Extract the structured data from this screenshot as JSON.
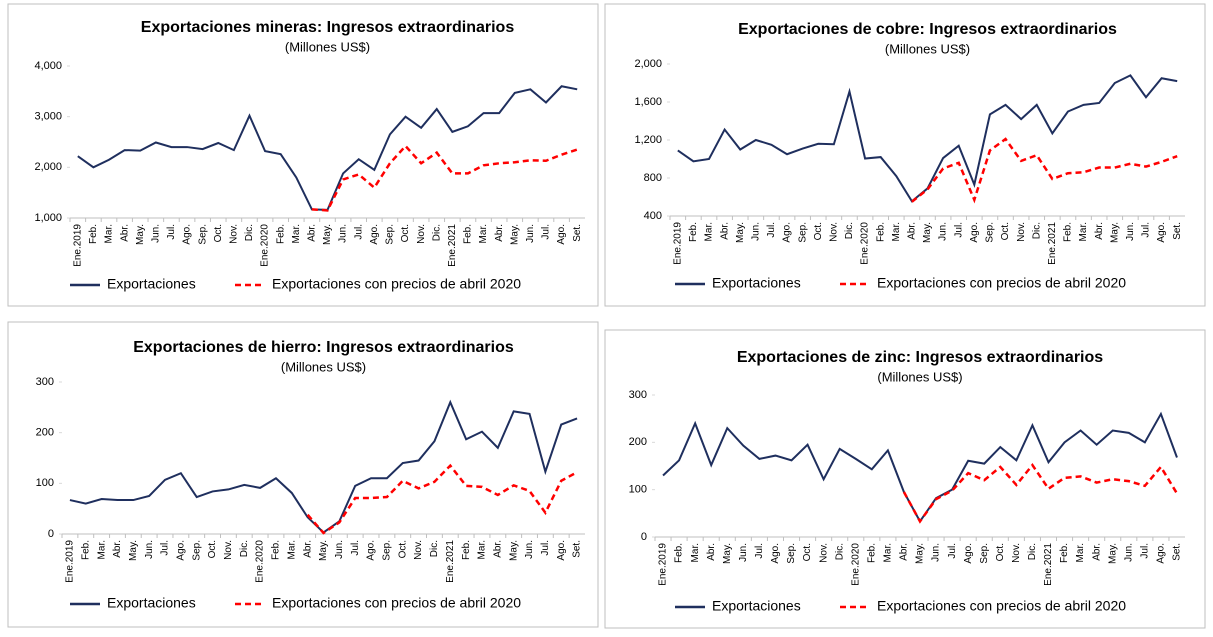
{
  "chart_data": [
    {
      "type": "line",
      "title": "Exportaciones mineras: Ingresos extraordinarios",
      "subtitle": "(Millones US$)",
      "categories": [
        "Ene.2019",
        "Feb.",
        "Mar.",
        "Abr.",
        "May.",
        "Jun.",
        "Jul.",
        "Ago.",
        "Sep.",
        "Oct.",
        "Nov.",
        "Dic.",
        "Ene.2020",
        "Feb.",
        "Mar.",
        "Abr.",
        "May.",
        "Jun.",
        "Jul.",
        "Ago.",
        "Sep.",
        "Oct.",
        "Nov.",
        "Dic.",
        "Ene.2021",
        "Feb.",
        "Mar.",
        "Abr.",
        "May.",
        "Jun.",
        "Jul.",
        "Ago.",
        "Set."
      ],
      "series": [
        {
          "name": "Exportaciones",
          "color": "#1f2f5e",
          "style": "solid",
          "values": [
            2220,
            2000,
            2150,
            2340,
            2330,
            2490,
            2400,
            2400,
            2360,
            2480,
            2340,
            3020,
            2320,
            2260,
            1800,
            1170,
            1160,
            1880,
            2160,
            1950,
            2650,
            3000,
            2780,
            3150,
            2700,
            2810,
            3070,
            3070,
            3470,
            3540,
            3280,
            3600,
            3540
          ]
        },
        {
          "name": "Exportaciones con precios de abril 2020",
          "color": "#ff0000",
          "style": "dashed",
          "values": [
            null,
            null,
            null,
            null,
            null,
            null,
            null,
            null,
            null,
            null,
            null,
            null,
            null,
            null,
            null,
            1170,
            1150,
            1760,
            1860,
            1600,
            2080,
            2420,
            2080,
            2290,
            1880,
            1880,
            2040,
            2080,
            2100,
            2140,
            2130,
            2250,
            2350
          ]
        }
      ],
      "ylim": [
        1000,
        4000
      ],
      "yticks": [
        {
          "value": 1000,
          "label": "1,000"
        },
        {
          "value": 2000,
          "label": "2,000"
        },
        {
          "value": 3000,
          "label": "3,000"
        },
        {
          "value": 4000,
          "label": "4,000"
        }
      ]
    },
    {
      "type": "line",
      "title": "Exportaciones de cobre: Ingresos extraordinarios",
      "subtitle": "(Millones US$)",
      "categories": [
        "Ene.2019",
        "Feb.",
        "Mar.",
        "Abr.",
        "May.",
        "Jun.",
        "Jul.",
        "Ago.",
        "Sep.",
        "Oct.",
        "Nov.",
        "Dic.",
        "Ene.2020",
        "Feb.",
        "Mar.",
        "Abr.",
        "May.",
        "Jun.",
        "Jul.",
        "Ago.",
        "Sep.",
        "Oct.",
        "Nov.",
        "Dic.",
        "Ene.2021",
        "Feb.",
        "Mar.",
        "Abr.",
        "May.",
        "Jun.",
        "Jul.",
        "Ago.",
        "Set."
      ],
      "series": [
        {
          "name": "Exportaciones",
          "color": "#1f2f5e",
          "style": "solid",
          "values": [
            1090,
            975,
            1000,
            1310,
            1100,
            1200,
            1150,
            1050,
            1110,
            1160,
            1155,
            1710,
            1005,
            1020,
            820,
            555,
            690,
            1010,
            1140,
            730,
            1470,
            1570,
            1420,
            1570,
            1270,
            1500,
            1570,
            1590,
            1800,
            1880,
            1650,
            1850,
            1820
          ]
        },
        {
          "name": "Exportaciones con precios de abril 2020",
          "color": "#ff0000",
          "style": "dashed",
          "values": [
            null,
            null,
            null,
            null,
            null,
            null,
            null,
            null,
            null,
            null,
            null,
            null,
            null,
            null,
            null,
            550,
            680,
            900,
            960,
            570,
            1090,
            1210,
            980,
            1040,
            790,
            850,
            860,
            910,
            910,
            950,
            920,
            970,
            1030
          ]
        }
      ],
      "ylim": [
        400,
        2000
      ],
      "yticks": [
        400,
        800,
        {
          "value": 1200,
          "label": "1,200"
        },
        {
          "value": 1600,
          "label": "1,600"
        },
        {
          "value": 2000,
          "label": "2,000"
        }
      ]
    },
    {
      "type": "line",
      "title": "Exportaciones de hierro: Ingresos extraordinarios",
      "subtitle": "(Millones US$)",
      "categories": [
        "Ene.2019",
        "Feb.",
        "Mar.",
        "Abr.",
        "May.",
        "Jun.",
        "Jul.",
        "Ago.",
        "Sep.",
        "Oct.",
        "Nov.",
        "Dic.",
        "Ene.2020",
        "Feb.",
        "Mar.",
        "Abr.",
        "May.",
        "Jun.",
        "Jul.",
        "Ago.",
        "Sep.",
        "Oct.",
        "Nov.",
        "Dic.",
        "Ene.2021",
        "Feb.",
        "Mar.",
        "Abr.",
        "May.",
        "Jun.",
        "Jul.",
        "Ago.",
        "Set."
      ],
      "series": [
        {
          "name": "Exportaciones",
          "color": "#1f2f5e",
          "style": "solid",
          "values": [
            67,
            60,
            69,
            67,
            67,
            75,
            107,
            120,
            73,
            84,
            88,
            97,
            91,
            110,
            81,
            33,
            3,
            25,
            95,
            110,
            110,
            140,
            145,
            183,
            260,
            187,
            202,
            170,
            242,
            237,
            123,
            216,
            228
          ]
        },
        {
          "name": "Exportaciones con precios de abril 2020",
          "color": "#ff0000",
          "style": "dashed",
          "values": [
            null,
            null,
            null,
            null,
            null,
            null,
            null,
            null,
            null,
            null,
            null,
            null,
            null,
            null,
            null,
            38,
            2,
            23,
            71,
            71,
            73,
            105,
            90,
            103,
            135,
            95,
            93,
            77,
            96,
            85,
            42,
            105,
            122
          ]
        }
      ],
      "ylim": [
        0,
        300
      ],
      "yticks": [
        0,
        100,
        200,
        300
      ]
    },
    {
      "type": "line",
      "title": "Exportaciones de zinc: Ingresos extraordinarios",
      "subtitle": "(Millones US$)",
      "categories": [
        "Ene.2019",
        "Feb.",
        "Mar.",
        "Abr.",
        "May.",
        "Jun.",
        "Jul.",
        "Ago.",
        "Sep.",
        "Oct.",
        "Nov.",
        "Dic.",
        "Ene.2020",
        "Feb.",
        "Mar.",
        "Abr.",
        "May.",
        "Jun.",
        "Jul.",
        "Ago.",
        "Sep.",
        "Oct.",
        "Nov.",
        "Dic.",
        "Ene.2021",
        "Feb.",
        "Mar.",
        "Abr.",
        "May.",
        "Jun.",
        "Jul.",
        "Ago.",
        "Set."
      ],
      "series": [
        {
          "name": "Exportaciones",
          "color": "#1f2f5e",
          "style": "solid",
          "values": [
            130,
            162,
            240,
            152,
            230,
            193,
            165,
            172,
            162,
            195,
            122,
            186,
            165,
            143,
            183,
            95,
            33,
            82,
            100,
            161,
            155,
            190,
            162,
            236,
            158,
            200,
            225,
            195,
            225,
            220,
            200,
            260,
            168
          ]
        },
        {
          "name": "Exportaciones con precios de abril 2020",
          "color": "#ff0000",
          "style": "dashed",
          "values": [
            null,
            null,
            null,
            null,
            null,
            null,
            null,
            null,
            null,
            null,
            null,
            null,
            null,
            null,
            null,
            95,
            33,
            80,
            98,
            135,
            120,
            148,
            110,
            152,
            102,
            125,
            128,
            115,
            122,
            118,
            108,
            148,
            92
          ]
        }
      ],
      "ylim": [
        0,
        300
      ],
      "yticks": [
        0,
        100,
        200,
        300
      ]
    }
  ]
}
